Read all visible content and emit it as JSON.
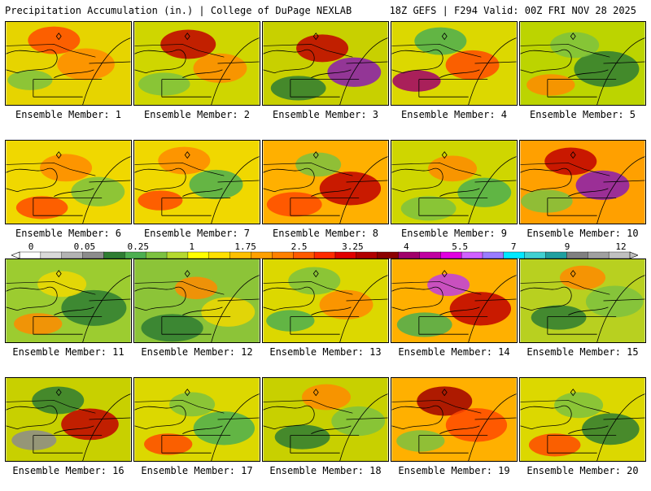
{
  "header": {
    "left_title": "Precipitation Accumulation (in.) | College of DuPage NEXLAB",
    "right_title": "18Z GEFS | F294 Valid: 00Z FRI NOV 28 2025"
  },
  "legend": {
    "labels": [
      "0",
      "0.05",
      "0.25",
      "1",
      "1.75",
      "2.5",
      "3.25",
      "4",
      "5.5",
      "7",
      "9",
      "12"
    ],
    "colors": [
      "#ffffff",
      "#d9d9d9",
      "#b3b3b3",
      "#8c8c8c",
      "#2e7d32",
      "#4caf50",
      "#7cc240",
      "#b5d92e",
      "#ffff00",
      "#ffe000",
      "#ffc000",
      "#ffa000",
      "#ff8000",
      "#ff5a00",
      "#ff2a00",
      "#e00000",
      "#b00000",
      "#8b0000",
      "#a0006a",
      "#c000a0",
      "#e000e0",
      "#d060ff",
      "#9a7cff",
      "#00e8ff",
      "#40d0d0",
      "#20a0a0",
      "#808080",
      "#a0a0a0",
      "#c0c0c0"
    ]
  },
  "members": [
    {
      "label": "Ensemble Member: 1",
      "base": "#e6d400",
      "blobs": [
        {
          "c": "#ff4a00",
          "w": 0.6
        },
        {
          "c": "#ff8a00",
          "w": 0.5
        },
        {
          "c": "#7cc240",
          "w": 0.3
        }
      ]
    },
    {
      "label": "Ensemble Member: 2",
      "base": "#cfd600",
      "blobs": [
        {
          "c": "#ff8a00",
          "w": 0.4
        },
        {
          "c": "#7cc240",
          "w": 0.5
        },
        {
          "c": "#c00000",
          "w": 0.7
        }
      ]
    },
    {
      "label": "Ensemble Member: 3",
      "base": "#c8d000",
      "blobs": [
        {
          "c": "#2e7d32",
          "w": 0.6
        },
        {
          "c": "#c00000",
          "w": 0.6
        },
        {
          "c": "#8a1bb0",
          "w": 0.4
        }
      ]
    },
    {
      "label": "Ensemble Member: 4",
      "base": "#dcd800",
      "blobs": [
        {
          "c": "#4caf50",
          "w": 0.6
        },
        {
          "c": "#ff4a00",
          "w": 0.4
        },
        {
          "c": "#a0006a",
          "w": 0.4
        }
      ]
    },
    {
      "label": "Ensemble Member: 5",
      "base": "#bcd400",
      "blobs": [
        {
          "c": "#2e7d32",
          "w": 0.7
        },
        {
          "c": "#ff8a00",
          "w": 0.4
        },
        {
          "c": "#7cc240",
          "w": 0.5
        }
      ]
    },
    {
      "label": "Ensemble Member: 6",
      "base": "#f0d800",
      "blobs": [
        {
          "c": "#ff4a00",
          "w": 0.5
        },
        {
          "c": "#ff8a00",
          "w": 0.6
        },
        {
          "c": "#7cc240",
          "w": 0.4
        }
      ]
    },
    {
      "label": "Ensemble Member: 7",
      "base": "#f0d800",
      "blobs": [
        {
          "c": "#ff8a00",
          "w": 0.6
        },
        {
          "c": "#4caf50",
          "w": 0.4
        },
        {
          "c": "#ff4a00",
          "w": 0.3
        }
      ]
    },
    {
      "label": "Ensemble Member: 8",
      "base": "#ffb000",
      "blobs": [
        {
          "c": "#c00000",
          "w": 0.6
        },
        {
          "c": "#ff4a00",
          "w": 0.6
        },
        {
          "c": "#7cc240",
          "w": 0.4
        }
      ]
    },
    {
      "label": "Ensemble Member: 9",
      "base": "#cfd600",
      "blobs": [
        {
          "c": "#7cc240",
          "w": 0.6
        },
        {
          "c": "#ff8a00",
          "w": 0.5
        },
        {
          "c": "#4caf50",
          "w": 0.4
        }
      ]
    },
    {
      "label": "Ensemble Member: 10",
      "base": "#ffa000",
      "blobs": [
        {
          "c": "#c00000",
          "w": 0.6
        },
        {
          "c": "#8a1bb0",
          "w": 0.4
        },
        {
          "c": "#7cc240",
          "w": 0.5
        }
      ]
    },
    {
      "label": "Ensemble Member: 11",
      "base": "#9ccc30",
      "blobs": [
        {
          "c": "#2e7d32",
          "w": 0.7
        },
        {
          "c": "#ff8a00",
          "w": 0.4
        },
        {
          "c": "#f0d800",
          "w": 0.5
        }
      ]
    },
    {
      "label": "Ensemble Member: 12",
      "base": "#8cc438",
      "blobs": [
        {
          "c": "#2e7d32",
          "w": 0.8
        },
        {
          "c": "#ff8a00",
          "w": 0.3
        },
        {
          "c": "#f0d800",
          "w": 0.4
        }
      ]
    },
    {
      "label": "Ensemble Member: 13",
      "base": "#dcd800",
      "blobs": [
        {
          "c": "#7cc240",
          "w": 0.6
        },
        {
          "c": "#ff8a00",
          "w": 0.4
        },
        {
          "c": "#4caf50",
          "w": 0.4
        }
      ]
    },
    {
      "label": "Ensemble Member: 14",
      "base": "#ffb000",
      "blobs": [
        {
          "c": "#c00000",
          "w": 0.6
        },
        {
          "c": "#4caf50",
          "w": 0.6
        },
        {
          "c": "#c040e0",
          "w": 0.3
        }
      ]
    },
    {
      "label": "Ensemble Member: 15",
      "base": "#b8d020",
      "blobs": [
        {
          "c": "#2e7d32",
          "w": 0.6
        },
        {
          "c": "#ff8a00",
          "w": 0.4
        },
        {
          "c": "#7cc240",
          "w": 0.5
        }
      ]
    },
    {
      "label": "Ensemble Member: 16",
      "base": "#c8d000",
      "blobs": [
        {
          "c": "#2e7d32",
          "w": 0.6
        },
        {
          "c": "#c00000",
          "w": 0.5
        },
        {
          "c": "#8c8c8c",
          "w": 0.3
        }
      ]
    },
    {
      "label": "Ensemble Member: 17",
      "base": "#dcd800",
      "blobs": [
        {
          "c": "#4caf50",
          "w": 0.6
        },
        {
          "c": "#ff4a00",
          "w": 0.4
        },
        {
          "c": "#7cc240",
          "w": 0.4
        }
      ]
    },
    {
      "label": "Ensemble Member: 18",
      "base": "#c8d000",
      "blobs": [
        {
          "c": "#2e7d32",
          "w": 0.6
        },
        {
          "c": "#ff8a00",
          "w": 0.5
        },
        {
          "c": "#7cc240",
          "w": 0.4
        }
      ]
    },
    {
      "label": "Ensemble Member: 19",
      "base": "#ffb000",
      "blobs": [
        {
          "c": "#a00000",
          "w": 0.7
        },
        {
          "c": "#ff4a00",
          "w": 0.6
        },
        {
          "c": "#7cc240",
          "w": 0.4
        }
      ]
    },
    {
      "label": "Ensemble Member: 20",
      "base": "#dcd800",
      "blobs": [
        {
          "c": "#2e7d32",
          "w": 0.5
        },
        {
          "c": "#ff4a00",
          "w": 0.5
        },
        {
          "c": "#7cc240",
          "w": 0.5
        }
      ]
    }
  ]
}
